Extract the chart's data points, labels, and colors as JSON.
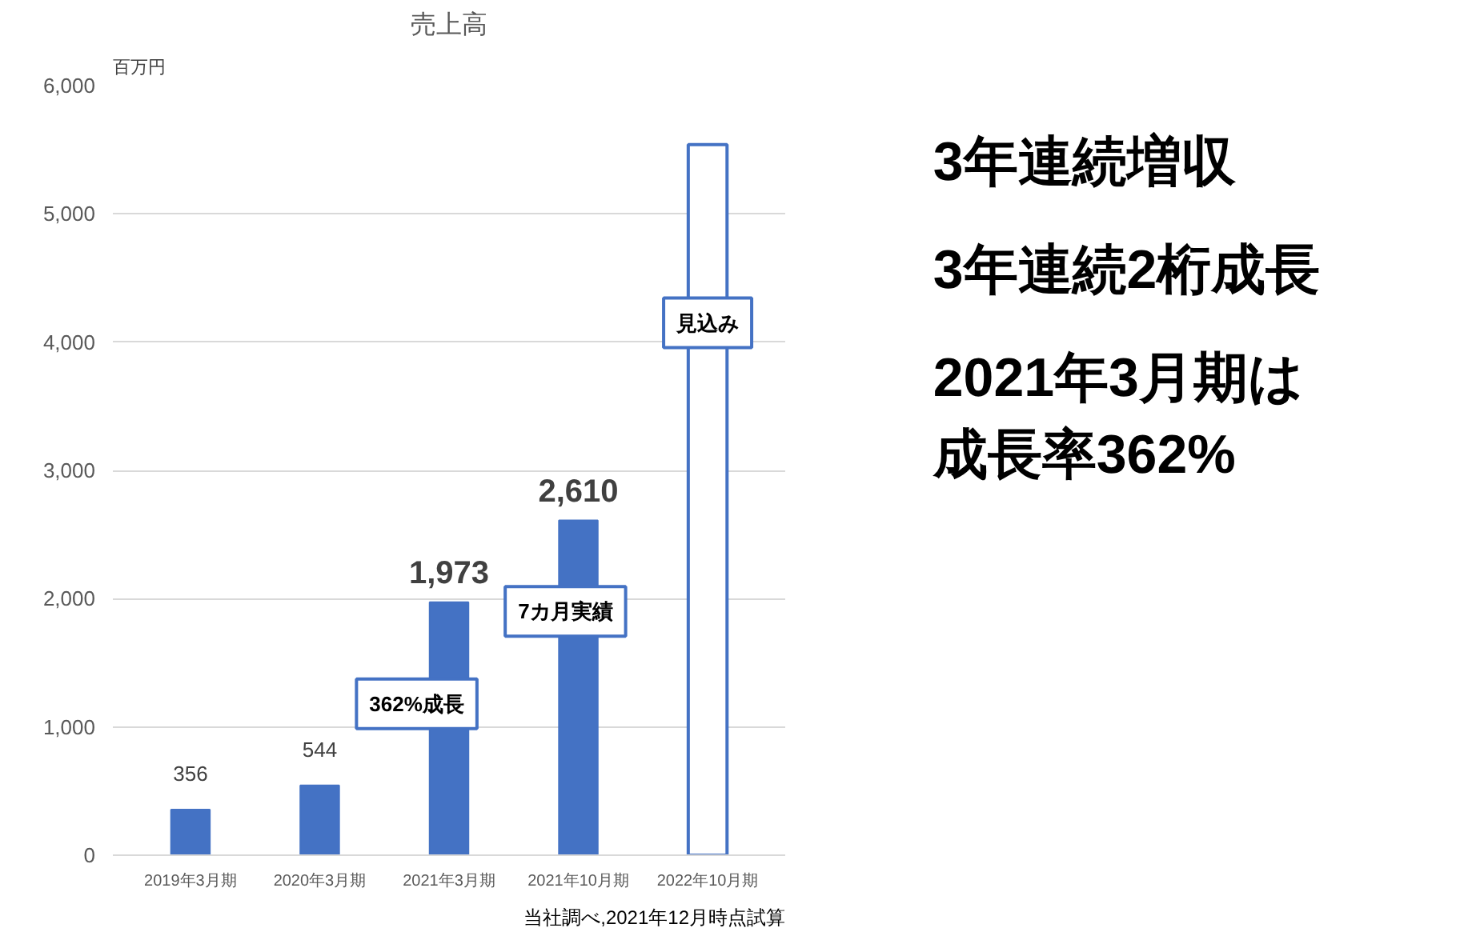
{
  "chart_data": {
    "type": "bar",
    "title": "売上高",
    "ylabel": "百万円",
    "categories": [
      "2019年3月期",
      "2020年3月期",
      "2021年3月期",
      "2021年10月期",
      "2022年10月期"
    ],
    "series": [
      {
        "color": "#4472c4",
        "values": [
          356,
          544,
          1973,
          2610,
          null
        ],
        "value_labels": [
          "356",
          "544",
          "1,973",
          "2,610",
          null
        ]
      },
      {
        "color": "#ffffff",
        "values": [
          null,
          null,
          null,
          null,
          5540
        ]
      }
    ],
    "ylim": [
      0,
      6000
    ],
    "yticks": [
      {
        "value": 0,
        "label": "0"
      },
      {
        "value": 1000,
        "label": "1,000"
      },
      {
        "value": 2000,
        "label": "2,000"
      },
      {
        "value": 3000,
        "label": "3,000"
      },
      {
        "value": 4000,
        "label": "4,000"
      },
      {
        "value": 5000,
        "label": "5,000"
      },
      {
        "value": 6000,
        "label": "6,000"
      }
    ],
    "grid": "y",
    "annotations": [
      "362%成長",
      "7カ月実績",
      "見込み",
      "3年連続増収",
      "3年連続2桁成長",
      "2021年3月期は成長率362%",
      "当社調べ,2021年12月時点試算"
    ]
  }
}
